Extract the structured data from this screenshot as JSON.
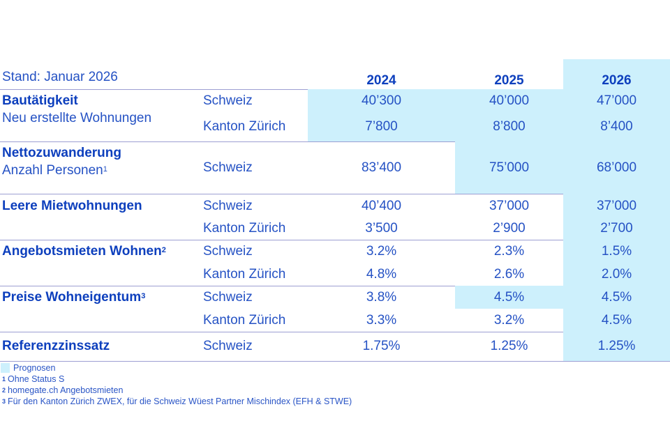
{
  "stand": "Stand: Januar 2026",
  "years": [
    "2024",
    "2025",
    "2026"
  ],
  "header_forecast": [
    false,
    false,
    true
  ],
  "groups": [
    {
      "title": "Bautätigkeit",
      "title_sup": "",
      "subtitle": "Neu erstellte Wohnungen",
      "subtitle_sup": "",
      "rows": [
        {
          "region": "Schweiz",
          "values": [
            "40’300",
            "40’000",
            "47’000"
          ],
          "forecast": [
            true,
            true,
            true
          ]
        },
        {
          "region": "Kanton Zürich",
          "values": [
            "7’800",
            "8’800",
            "8’400"
          ],
          "forecast": [
            true,
            true,
            true
          ]
        }
      ]
    },
    {
      "title": "Nettozuwanderung",
      "title_sup": "",
      "subtitle": "Anzahl Personen",
      "subtitle_sup": "1",
      "rows": [
        {
          "region": "Schweiz",
          "values": [
            "83’400",
            "75’000",
            "68’000"
          ],
          "forecast": [
            false,
            true,
            true
          ]
        }
      ]
    },
    {
      "title": "Leere Mietwohnungen",
      "title_sup": "",
      "subtitle": "",
      "subtitle_sup": "",
      "rows": [
        {
          "region": "Schweiz",
          "values": [
            "40’400",
            "37’000",
            "37’000"
          ],
          "forecast": [
            false,
            false,
            true
          ]
        },
        {
          "region": "Kanton Zürich",
          "values": [
            "3’500",
            "2’900",
            "2’700"
          ],
          "forecast": [
            false,
            false,
            true
          ]
        }
      ]
    },
    {
      "title": "Angebotsmieten Wohnen",
      "title_sup": "2",
      "subtitle": "",
      "subtitle_sup": "",
      "rows": [
        {
          "region": "Schweiz",
          "values": [
            "3.2%",
            "2.3%",
            "1.5%"
          ],
          "forecast": [
            false,
            false,
            true
          ]
        },
        {
          "region": "Kanton Zürich",
          "values": [
            "4.8%",
            "2.6%",
            "2.0%"
          ],
          "forecast": [
            false,
            false,
            true
          ]
        }
      ]
    },
    {
      "title": "Preise Wohneigentum",
      "title_sup": "3",
      "subtitle": "",
      "subtitle_sup": "",
      "rows": [
        {
          "region": "Schweiz",
          "values": [
            "3.8%",
            "4.5%",
            "4.5%"
          ],
          "forecast": [
            false,
            true,
            true
          ]
        },
        {
          "region": "Kanton Zürich",
          "values": [
            "3.3%",
            "3.2%",
            "4.5%"
          ],
          "forecast": [
            false,
            false,
            true
          ]
        }
      ]
    },
    {
      "title": "Referenzzinssatz",
      "title_sup": "",
      "subtitle": "",
      "subtitle_sup": "",
      "rows": [
        {
          "region": "Schweiz",
          "values": [
            "1.75%",
            "1.25%",
            "1.25%"
          ],
          "forecast": [
            false,
            false,
            true
          ]
        }
      ]
    }
  ],
  "legend": {
    "label": "Prognosen",
    "color": "#cdf0fc"
  },
  "footnotes": [
    {
      "mark": "1",
      "text": "Ohne Status S"
    },
    {
      "mark": "2",
      "text": "homegate.ch Angebotsmieten"
    },
    {
      "mark": "3",
      "text": "Für den Kanton Zürich ZWEX, für die Schweiz Wüest Partner Mischindex (EFH & STWE)"
    }
  ],
  "colors": {
    "text": "#2552c4",
    "heading": "#0d3fbd",
    "forecast": "#cdf0fc",
    "rule": "#9c9ed2"
  }
}
